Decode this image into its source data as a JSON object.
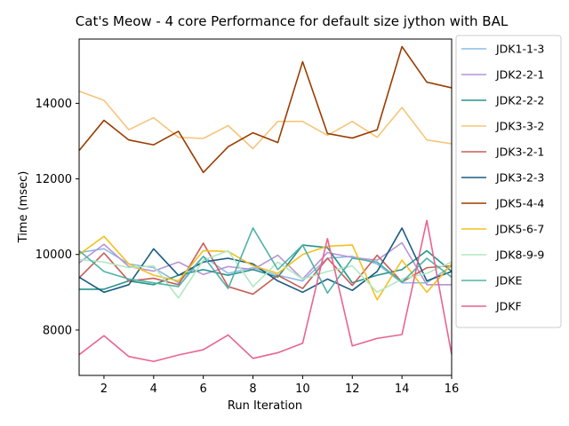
{
  "chart_data": {
    "type": "line",
    "title": "Cat's Meow - 4 core Performance for default size jython with BAL",
    "xlabel": "Run Iteration",
    "ylabel": "Time (msec)",
    "xlim": [
      1,
      16
    ],
    "ylim": [
      6800,
      15700
    ],
    "xticks": [
      2,
      4,
      6,
      8,
      10,
      12,
      14,
      16
    ],
    "yticks": [
      8000,
      10000,
      12000,
      14000
    ],
    "grid": false,
    "legend_position": "outside-right",
    "x": [
      1,
      2,
      3,
      4,
      5,
      6,
      7,
      8,
      9,
      10,
      11,
      12,
      13,
      14,
      15,
      16
    ],
    "series": [
      {
        "name": "JDK1-1-3",
        "color": "#8bbbe6",
        "values": [
          10050,
          10150,
          9750,
          9650,
          9250,
          9950,
          9500,
          9650,
          9450,
          9300,
          9900,
          9950,
          9750,
          9250,
          9250,
          9700
        ]
      },
      {
        "name": "JDK2-2-1",
        "color": "#b794d6",
        "values": [
          9780,
          10270,
          9680,
          9560,
          9800,
          9470,
          9680,
          9600,
          9980,
          9350,
          10050,
          9920,
          9850,
          10310,
          9200,
          9200
        ]
      },
      {
        "name": "JDK2-2-2",
        "color": "#24948b",
        "values": [
          9080,
          9080,
          9300,
          9200,
          9450,
          9600,
          9450,
          9600,
          9400,
          10250,
          10180,
          9250,
          9450,
          9600,
          10100,
          9550
        ]
      },
      {
        "name": "JDK3-3-2",
        "color": "#f5c57a",
        "values": [
          14320,
          14080,
          13300,
          13620,
          13100,
          13070,
          13410,
          12800,
          13520,
          13520,
          13150,
          13520,
          13100,
          13890,
          13030,
          12930
        ]
      },
      {
        "name": "JDK3-2-1",
        "color": "#c75f5a",
        "values": [
          9380,
          10040,
          9300,
          9370,
          9200,
          10300,
          9150,
          8950,
          9450,
          9100,
          9900,
          9180,
          9980,
          9270,
          9650,
          9700
        ]
      },
      {
        "name": "JDK3-2-3",
        "color": "#1a5c80",
        "values": [
          9400,
          9000,
          9200,
          10150,
          9450,
          9800,
          9900,
          9750,
          9300,
          9000,
          9350,
          9050,
          9550,
          10700,
          9300,
          9550
        ]
      },
      {
        "name": "JDK5-4-4",
        "color": "#9a3d00",
        "values": [
          12750,
          13550,
          13030,
          12900,
          13260,
          12170,
          12850,
          13220,
          12960,
          15100,
          13200,
          13080,
          13300,
          15500,
          14560,
          14410
        ]
      },
      {
        "name": "JDK5-6-7",
        "color": "#f5bf1c",
        "values": [
          10000,
          10480,
          9750,
          9450,
          9300,
          10100,
          10080,
          9700,
          9500,
          10000,
          10220,
          10250,
          8800,
          9850,
          9000,
          9750
        ]
      },
      {
        "name": "JDK8-9-9",
        "color": "#b0e8c0",
        "values": [
          9870,
          9800,
          9650,
          9700,
          8850,
          9850,
          10100,
          9150,
          9800,
          9350,
          9550,
          9700,
          9000,
          9350,
          9500,
          9800
        ]
      },
      {
        "name": "JDKE",
        "color": "#4fb3a5",
        "values": [
          10100,
          9550,
          9350,
          9250,
          9150,
          9950,
          9100,
          10700,
          9600,
          10250,
          8980,
          9900,
          9800,
          9270,
          9900,
          9400
        ]
      },
      {
        "name": "JDKF",
        "color": "#e8648e",
        "values": [
          7350,
          7850,
          7300,
          7170,
          7340,
          7480,
          7870,
          7250,
          7400,
          7650,
          10420,
          7580,
          7780,
          7880,
          10900,
          7350
        ]
      }
    ]
  }
}
